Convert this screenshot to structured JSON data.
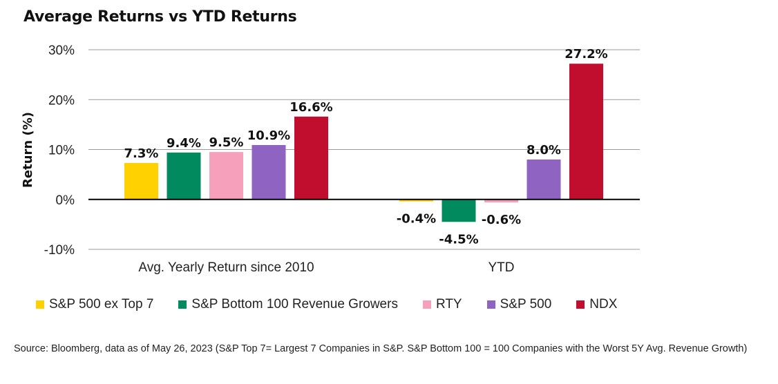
{
  "chart_data": {
    "type": "bar",
    "title": "Average Returns vs YTD Returns",
    "ylabel": "Return (%)",
    "ylim": [
      -10,
      30
    ],
    "yticks": [
      -10,
      0,
      10,
      20,
      30
    ],
    "ytick_labels": [
      "-10%",
      "0%",
      "10%",
      "20%",
      "30%"
    ],
    "grid": true,
    "legend_position": "bottom",
    "categories": [
      "Avg. Yearly Return since 2010",
      "YTD"
    ],
    "series": [
      {
        "name": "S&P 500 ex Top 7",
        "color": "#FFD100",
        "values": [
          7.3,
          -0.4
        ],
        "labels": [
          "7.3%",
          "-0.4%"
        ]
      },
      {
        "name": "S&P Bottom 100 Revenue Growers",
        "color": "#008A5E",
        "values": [
          9.4,
          -4.5
        ],
        "labels": [
          "9.4%",
          "-4.5%"
        ]
      },
      {
        "name": "RTY",
        "color": "#F7A0BC",
        "values": [
          9.5,
          -0.6
        ],
        "labels": [
          "9.5%",
          "-0.6%"
        ]
      },
      {
        "name": "S&P 500",
        "color": "#8E63C1",
        "values": [
          10.9,
          8.0
        ],
        "labels": [
          "10.9%",
          "8.0%"
        ]
      },
      {
        "name": "NDX",
        "color": "#C20E2E",
        "values": [
          16.6,
          27.2
        ],
        "labels": [
          "16.6%",
          "27.2%"
        ]
      }
    ]
  },
  "source_note": "Source: Bloomberg, data as of May 26, 2023 (S&P Top 7= Largest 7 Companies in S&P. S&P Bottom 100 = 100 Companies with the Worst 5Y Avg. Revenue Growth)"
}
